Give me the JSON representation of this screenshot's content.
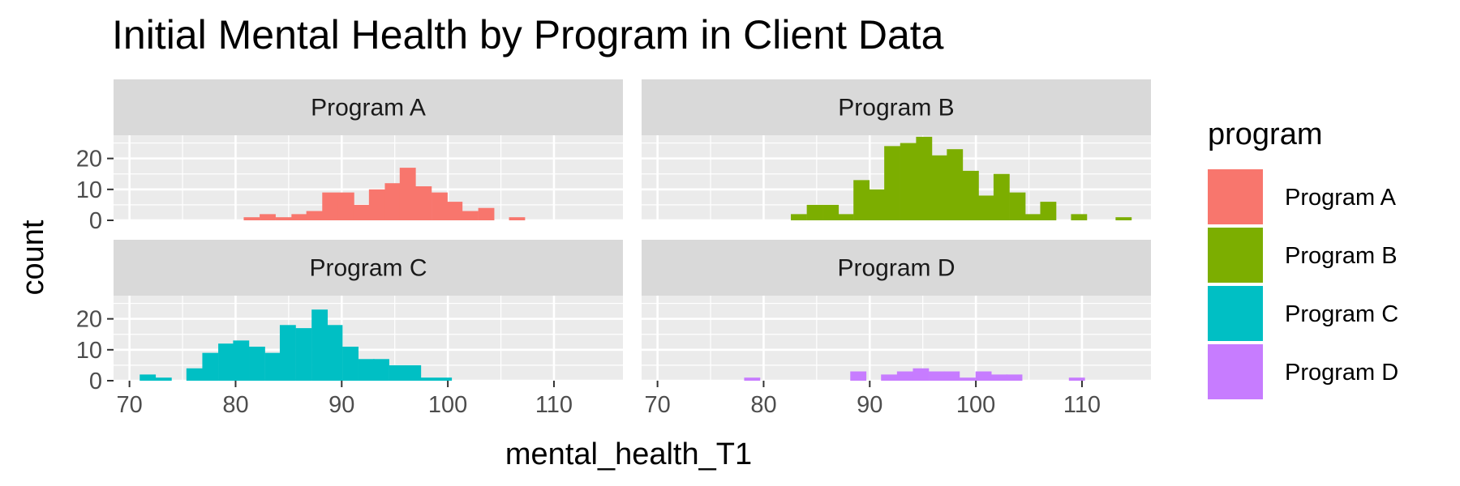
{
  "chart_data": {
    "type": "bar",
    "subtype": "faceted-histogram",
    "title": "Initial Mental Health by Program in Client Data",
    "xlabel": "mental_health_T1",
    "ylabel": "count",
    "xlim": [
      68.5,
      116.5
    ],
    "ylim": [
      0,
      27.5
    ],
    "x_ticks": [
      70,
      80,
      90,
      100,
      110
    ],
    "y_ticks": [
      0,
      10,
      20
    ],
    "grid": true,
    "legend": {
      "title": "program",
      "placement": "right"
    },
    "bin_width": 1.47,
    "series": [
      {
        "name": "Program A",
        "color": "#F8766D",
        "bins": [
          {
            "x": 81.5,
            "count": 1
          },
          {
            "x": 83.0,
            "count": 2
          },
          {
            "x": 84.5,
            "count": 1
          },
          {
            "x": 86.0,
            "count": 2
          },
          {
            "x": 87.4,
            "count": 3
          },
          {
            "x": 88.9,
            "count": 9
          },
          {
            "x": 90.4,
            "count": 9
          },
          {
            "x": 91.8,
            "count": 5
          },
          {
            "x": 93.3,
            "count": 10
          },
          {
            "x": 94.8,
            "count": 12
          },
          {
            "x": 96.2,
            "count": 17
          },
          {
            "x": 97.7,
            "count": 11
          },
          {
            "x": 99.2,
            "count": 9
          },
          {
            "x": 100.6,
            "count": 6
          },
          {
            "x": 102.1,
            "count": 3
          },
          {
            "x": 103.6,
            "count": 4
          },
          {
            "x": 106.5,
            "count": 1
          }
        ]
      },
      {
        "name": "Program B",
        "color": "#7CAE00",
        "bins": [
          {
            "x": 83.3,
            "count": 2
          },
          {
            "x": 84.8,
            "count": 5
          },
          {
            "x": 86.3,
            "count": 5
          },
          {
            "x": 87.7,
            "count": 2
          },
          {
            "x": 89.2,
            "count": 13
          },
          {
            "x": 90.7,
            "count": 10
          },
          {
            "x": 92.1,
            "count": 24
          },
          {
            "x": 93.6,
            "count": 25
          },
          {
            "x": 95.1,
            "count": 27
          },
          {
            "x": 96.5,
            "count": 21
          },
          {
            "x": 98.0,
            "count": 23
          },
          {
            "x": 99.5,
            "count": 16
          },
          {
            "x": 100.9,
            "count": 8
          },
          {
            "x": 102.4,
            "count": 15
          },
          {
            "x": 103.9,
            "count": 9
          },
          {
            "x": 105.3,
            "count": 2
          },
          {
            "x": 106.8,
            "count": 6
          },
          {
            "x": 109.7,
            "count": 2
          },
          {
            "x": 113.9,
            "count": 1
          }
        ]
      },
      {
        "name": "Program C",
        "color": "#00BFC4",
        "bins": [
          {
            "x": 71.7,
            "count": 2
          },
          {
            "x": 73.2,
            "count": 1
          },
          {
            "x": 76.1,
            "count": 4
          },
          {
            "x": 77.6,
            "count": 9
          },
          {
            "x": 79.1,
            "count": 12
          },
          {
            "x": 80.5,
            "count": 13
          },
          {
            "x": 82.0,
            "count": 11
          },
          {
            "x": 83.5,
            "count": 9
          },
          {
            "x": 84.9,
            "count": 18
          },
          {
            "x": 86.4,
            "count": 17
          },
          {
            "x": 87.9,
            "count": 23
          },
          {
            "x": 89.3,
            "count": 18
          },
          {
            "x": 90.8,
            "count": 11
          },
          {
            "x": 92.3,
            "count": 7
          },
          {
            "x": 93.7,
            "count": 7
          },
          {
            "x": 95.2,
            "count": 5
          },
          {
            "x": 96.7,
            "count": 5
          },
          {
            "x": 98.1,
            "count": 1
          },
          {
            "x": 99.6,
            "count": 1
          }
        ]
      },
      {
        "name": "Program D",
        "color": "#C77CFF",
        "bins": [
          {
            "x": 78.9,
            "count": 1
          },
          {
            "x": 88.9,
            "count": 3
          },
          {
            "x": 91.8,
            "count": 2
          },
          {
            "x": 93.3,
            "count": 3
          },
          {
            "x": 94.8,
            "count": 4
          },
          {
            "x": 96.3,
            "count": 3
          },
          {
            "x": 97.7,
            "count": 3
          },
          {
            "x": 99.2,
            "count": 1
          },
          {
            "x": 100.7,
            "count": 3
          },
          {
            "x": 102.2,
            "count": 2
          },
          {
            "x": 103.6,
            "count": 2
          },
          {
            "x": 109.5,
            "count": 1
          }
        ]
      }
    ]
  }
}
